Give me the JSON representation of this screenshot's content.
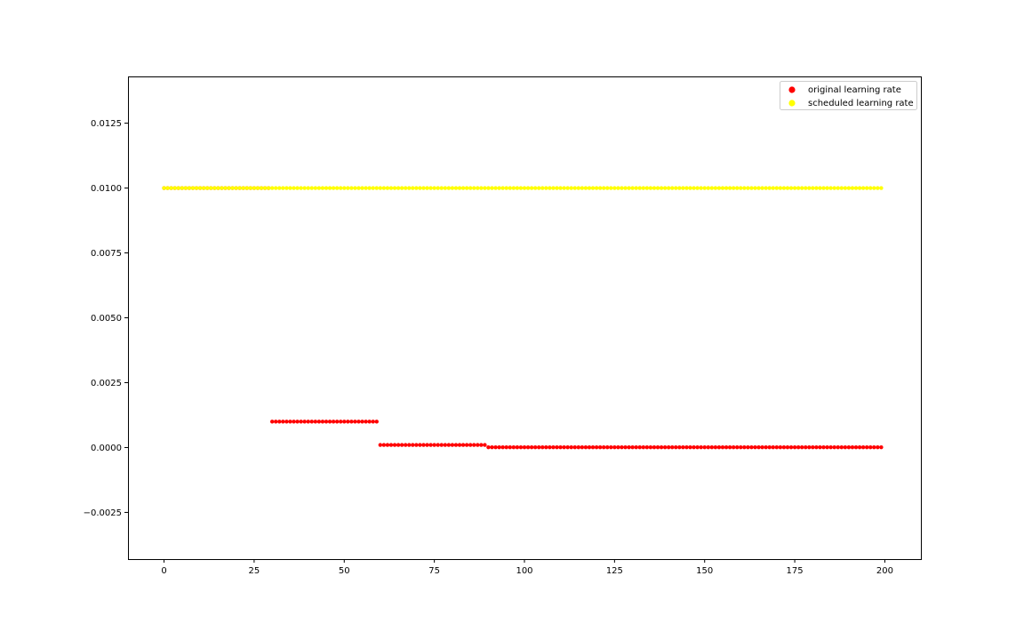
{
  "chart_data": {
    "type": "scatter",
    "title": "",
    "xlabel": "",
    "ylabel": "",
    "xlim": [
      -10,
      210
    ],
    "ylim": [
      -0.0043,
      0.0143
    ],
    "x_ticks": [
      0,
      25,
      50,
      75,
      100,
      125,
      150,
      175,
      200
    ],
    "x_tick_labels": [
      "0",
      "25",
      "50",
      "75",
      "100",
      "125",
      "150",
      "175",
      "200"
    ],
    "y_ticks": [
      -0.0025,
      0.0,
      0.0025,
      0.005,
      0.0075,
      0.01,
      0.0125
    ],
    "y_tick_labels": [
      "−0.0025",
      "0.0000",
      "0.0025",
      "0.0050",
      "0.0075",
      "0.0100",
      "0.0125"
    ],
    "grid": false,
    "legend": {
      "position": "top-right"
    },
    "series": [
      {
        "name": "original learning rate",
        "color": "#ff0000",
        "x_range": [
          0,
          199
        ],
        "piecewise": [
          {
            "x_from": 0,
            "x_to": 29,
            "y": 0.01
          },
          {
            "x_from": 30,
            "x_to": 59,
            "y": 0.001
          },
          {
            "x_from": 60,
            "x_to": 89,
            "y": 0.0001
          },
          {
            "x_from": 90,
            "x_to": 199,
            "y": 1e-05
          }
        ]
      },
      {
        "name": "scheduled learning rate",
        "color": "#ffff00",
        "x_range": [
          0,
          199
        ],
        "piecewise": [
          {
            "x_from": 0,
            "x_to": 199,
            "y": 0.01
          }
        ]
      }
    ]
  }
}
